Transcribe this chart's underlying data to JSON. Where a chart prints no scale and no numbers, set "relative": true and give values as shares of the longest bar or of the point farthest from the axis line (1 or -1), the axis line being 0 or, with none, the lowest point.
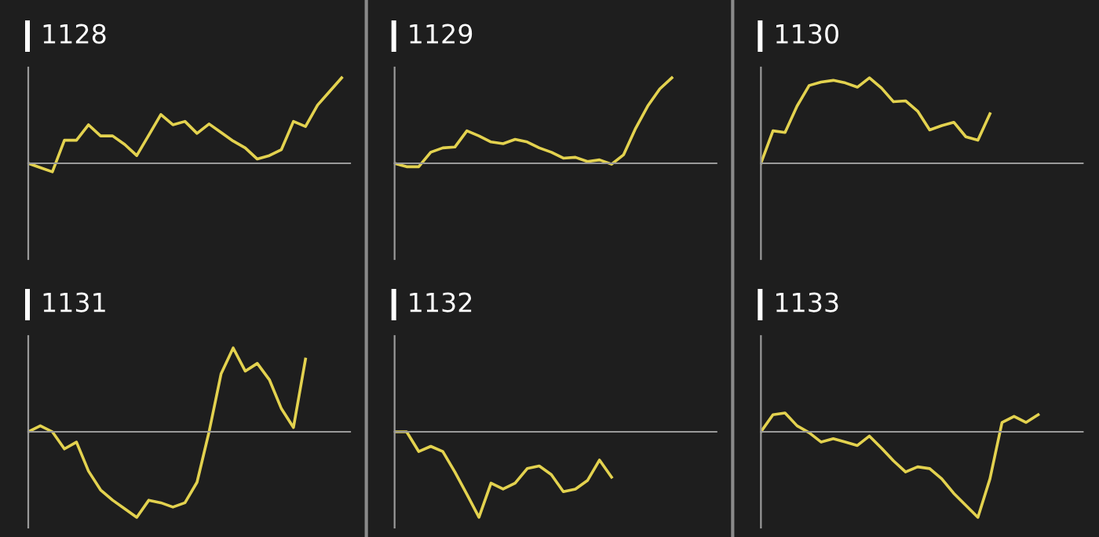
{
  "chart_data": [
    {
      "type": "line",
      "title": "1128",
      "relative": true,
      "grid": false,
      "color": "#e3d24f",
      "categories": [
        null,
        null,
        null,
        null,
        null,
        null,
        null,
        null,
        null,
        null,
        null,
        null,
        null,
        null,
        null,
        null,
        null,
        null,
        null,
        null,
        null,
        null,
        null,
        null,
        null,
        null,
        null
      ],
      "values": [
        0,
        -0.05,
        -0.1,
        0.27,
        0.27,
        0.45,
        0.32,
        0.32,
        0.22,
        0.09,
        0.33,
        0.57,
        0.45,
        0.49,
        0.35,
        0.46,
        0.36,
        0.26,
        0.18,
        0.05,
        0.09,
        0.16,
        0.49,
        0.43,
        0.68,
        0.84,
        1.0
      ]
    },
    {
      "type": "line",
      "title": "1129",
      "relative": true,
      "grid": false,
      "color": "#e3d24f",
      "categories": [
        null,
        null,
        null,
        null,
        null,
        null,
        null,
        null,
        null,
        null,
        null,
        null,
        null,
        null,
        null,
        null,
        null,
        null,
        null,
        null,
        null,
        null,
        null,
        null,
        null,
        null,
        null
      ],
      "values": [
        0,
        -0.04,
        -0.04,
        0.13,
        0.18,
        0.19,
        0.38,
        0.32,
        0.25,
        0.23,
        0.28,
        0.25,
        0.18,
        0.13,
        0.06,
        0.07,
        0.02,
        0.04,
        -0.01,
        0.1,
        0.41,
        0.67,
        0.87,
        1.0,
        null,
        null,
        null
      ]
    },
    {
      "type": "line",
      "title": "1130",
      "relative": true,
      "grid": false,
      "color": "#e3d24f",
      "categories": [
        null,
        null,
        null,
        null,
        null,
        null,
        null,
        null,
        null,
        null,
        null,
        null,
        null,
        null,
        null,
        null,
        null,
        null,
        null,
        null,
        null,
        null,
        null,
        null,
        null,
        null,
        null
      ],
      "values": [
        0,
        0.38,
        0.36,
        0.67,
        0.91,
        0.95,
        0.97,
        0.94,
        0.89,
        1.0,
        0.88,
        0.72,
        0.73,
        0.61,
        0.39,
        0.44,
        0.48,
        0.31,
        0.27,
        0.58,
        null,
        null,
        null,
        null,
        null,
        null,
        null
      ]
    },
    {
      "type": "line",
      "title": "1131",
      "relative": true,
      "grid": false,
      "color": "#e3d24f",
      "categories": [
        null,
        null,
        null,
        null,
        null,
        null,
        null,
        null,
        null,
        null,
        null,
        null,
        null,
        null,
        null,
        null,
        null,
        null,
        null,
        null,
        null,
        null,
        null,
        null,
        null,
        null,
        null
      ],
      "values": [
        0,
        0.07,
        0,
        -0.2,
        -0.12,
        -0.46,
        -0.68,
        -0.8,
        -0.9,
        -1.0,
        -0.8,
        -0.83,
        -0.88,
        -0.83,
        -0.59,
        0,
        0.68,
        0.98,
        0.71,
        0.8,
        0.61,
        0.27,
        0.05,
        0.85,
        null,
        null,
        null
      ]
    },
    {
      "type": "line",
      "title": "1132",
      "relative": true,
      "grid": false,
      "color": "#e3d24f",
      "categories": [
        null,
        null,
        null,
        null,
        null,
        null,
        null,
        null,
        null,
        null,
        null,
        null,
        null,
        null,
        null,
        null,
        null,
        null,
        null,
        null,
        null,
        null,
        null,
        null,
        null,
        null,
        null
      ],
      "values": [
        0,
        0,
        -0.23,
        -0.17,
        -0.23,
        -0.47,
        -0.73,
        -1.0,
        -0.6,
        -0.67,
        -0.6,
        -0.43,
        -0.4,
        -0.5,
        -0.7,
        -0.67,
        -0.57,
        -0.33,
        -0.53,
        null,
        null,
        null,
        null,
        null,
        null,
        null,
        null
      ]
    },
    {
      "type": "line",
      "title": "1133",
      "relative": true,
      "grid": false,
      "color": "#e3d24f",
      "categories": [
        null,
        null,
        null,
        null,
        null,
        null,
        null,
        null,
        null,
        null,
        null,
        null,
        null,
        null,
        null,
        null,
        null,
        null,
        null,
        null,
        null,
        null,
        null,
        null,
        null,
        null,
        null
      ],
      "values": [
        0,
        0.2,
        0.22,
        0.07,
        -0.01,
        -0.12,
        -0.08,
        -0.12,
        -0.16,
        -0.05,
        -0.19,
        -0.34,
        -0.47,
        -0.41,
        -0.43,
        -0.55,
        -0.72,
        -0.86,
        -1.0,
        -0.55,
        0.11,
        0.18,
        0.11,
        0.2,
        null,
        null,
        null
      ]
    }
  ]
}
